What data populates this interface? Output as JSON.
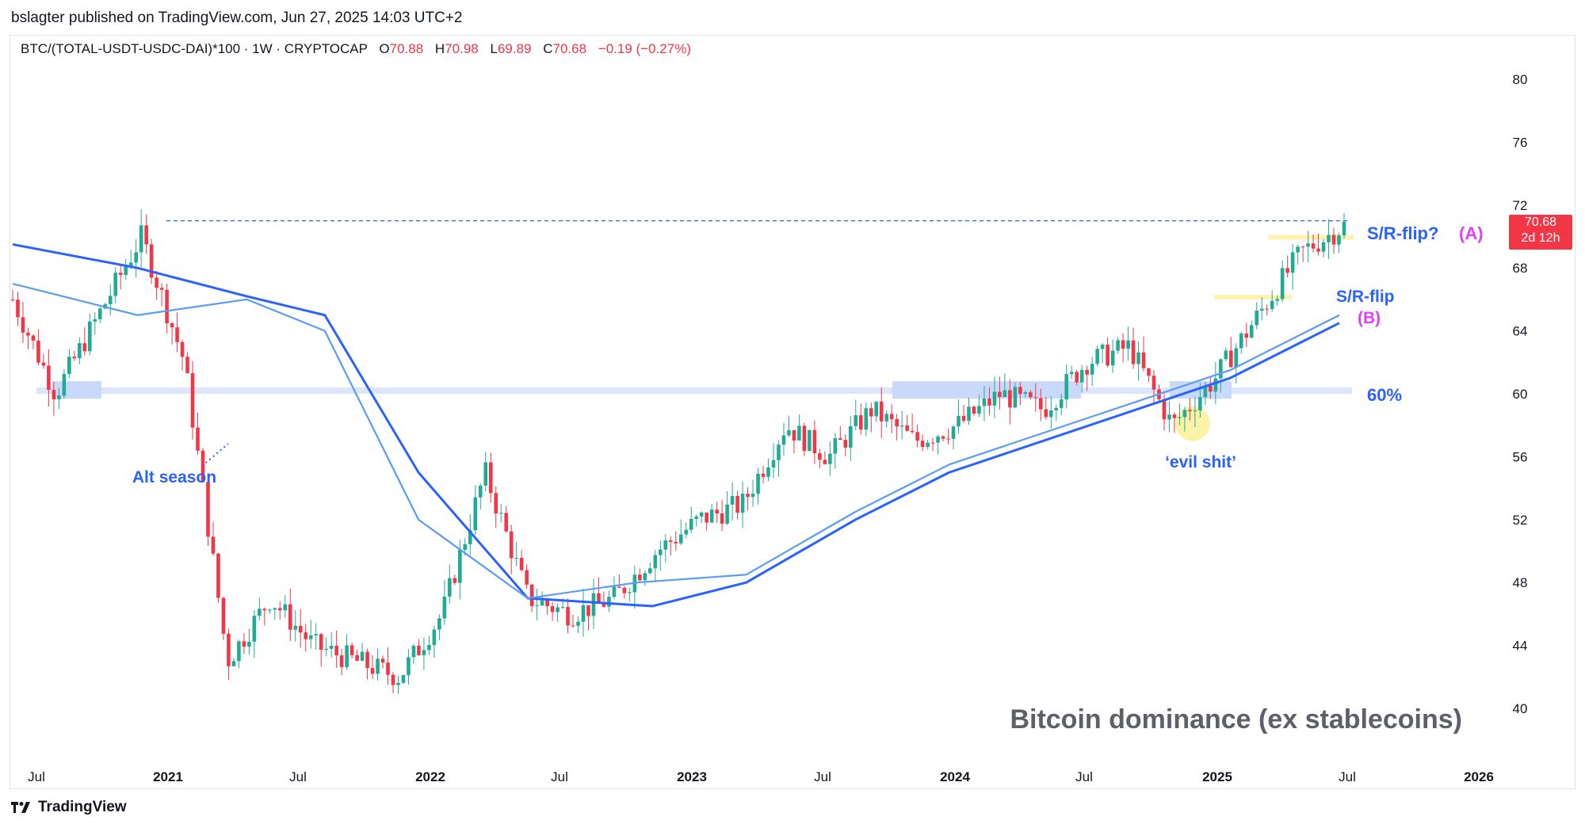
{
  "header": {
    "publisher_line": "bslagter published on TradingView.com, Jun 27, 2025 14:03 UTC+2"
  },
  "legend": {
    "symbol": "BTC/(TOTAL-USDT-USDC-DAI)*100 · 1W · CRYPTOCAP",
    "open_label": "O",
    "open": "70.88",
    "high_label": "H",
    "high": "70.98",
    "low_label": "L",
    "low": "69.89",
    "close_label": "C",
    "close": "70.68",
    "change": "−0.19 (−0.27%)"
  },
  "price_tag": {
    "price": "70.68",
    "countdown": "2d 12h"
  },
  "footer": {
    "brand": "TradingView"
  },
  "colors": {
    "up": "#22ab94",
    "down": "#f23645",
    "ma_dark": "#2962ff",
    "ma_light": "#5b9cf6",
    "annotation_blue": "#2962ff",
    "annotation_pink": "#e040fb"
  },
  "chart_data": {
    "type": "candlestick",
    "title": "Bitcoin dominance (ex stablecoins)",
    "timeframe": "1W",
    "x_ticks": [
      "Jul",
      "2021",
      "Jul",
      "2022",
      "Jul",
      "2023",
      "Jul",
      "2024",
      "Jul",
      "2025",
      "Jul",
      "2026"
    ],
    "y_ticks": [
      40,
      44,
      48,
      52,
      56,
      60,
      64,
      68,
      72,
      76,
      80
    ],
    "ylim": [
      38,
      82
    ],
    "last_price": 70.68,
    "horizontal_levels": [
      {
        "value": 71.0,
        "style": "dashed"
      },
      {
        "value": 60.2,
        "style": "band"
      }
    ],
    "series_close_approx": [
      {
        "date": "2020-07",
        "close": 66
      },
      {
        "date": "2020-09",
        "close": 60
      },
      {
        "date": "2020-11",
        "close": 65
      },
      {
        "date": "2021-01",
        "close": 70
      },
      {
        "date": "2021-03",
        "close": 62
      },
      {
        "date": "2021-05",
        "close": 43
      },
      {
        "date": "2021-07",
        "close": 47
      },
      {
        "date": "2021-09",
        "close": 44
      },
      {
        "date": "2021-11",
        "close": 43
      },
      {
        "date": "2022-01",
        "close": 42
      },
      {
        "date": "2022-03",
        "close": 46
      },
      {
        "date": "2022-05",
        "close": 55
      },
      {
        "date": "2022-07",
        "close": 47
      },
      {
        "date": "2022-09",
        "close": 46
      },
      {
        "date": "2022-11",
        "close": 47
      },
      {
        "date": "2023-01",
        "close": 50
      },
      {
        "date": "2023-03",
        "close": 52
      },
      {
        "date": "2023-05",
        "close": 53
      },
      {
        "date": "2023-07",
        "close": 58
      },
      {
        "date": "2023-09",
        "close": 56
      },
      {
        "date": "2023-11",
        "close": 59
      },
      {
        "date": "2024-01",
        "close": 57
      },
      {
        "date": "2024-03",
        "close": 58
      },
      {
        "date": "2024-05",
        "close": 60
      },
      {
        "date": "2024-07",
        "close": 59
      },
      {
        "date": "2024-09",
        "close": 62
      },
      {
        "date": "2024-11",
        "close": 63
      },
      {
        "date": "2024-12",
        "close": 58
      },
      {
        "date": "2025-01",
        "close": 61
      },
      {
        "date": "2025-03",
        "close": 65
      },
      {
        "date": "2025-05",
        "close": 69
      },
      {
        "date": "2025-06",
        "close": 70.68
      }
    ],
    "moving_averages": [
      {
        "color": "dark",
        "points": [
          [
            0,
            69.5
          ],
          [
            0.08,
            68
          ],
          [
            0.15,
            66.2
          ],
          [
            0.2,
            65
          ],
          [
            0.26,
            55
          ],
          [
            0.33,
            47
          ],
          [
            0.41,
            46.5
          ],
          [
            0.47,
            48
          ],
          [
            0.54,
            52
          ],
          [
            0.6,
            55
          ],
          [
            0.66,
            57
          ],
          [
            0.72,
            59
          ],
          [
            0.78,
            61
          ],
          [
            0.85,
            64.5
          ]
        ]
      },
      {
        "color": "light",
        "points": [
          [
            0,
            67
          ],
          [
            0.08,
            65
          ],
          [
            0.15,
            66
          ],
          [
            0.2,
            64
          ],
          [
            0.26,
            52
          ],
          [
            0.33,
            47
          ],
          [
            0.4,
            48
          ],
          [
            0.47,
            48.5
          ],
          [
            0.54,
            52.5
          ],
          [
            0.6,
            55.5
          ],
          [
            0.66,
            57.5
          ],
          [
            0.72,
            59.5
          ],
          [
            0.78,
            61.5
          ],
          [
            0.85,
            65
          ]
        ]
      }
    ],
    "annotations": [
      {
        "text": "Alt season",
        "color": "blue"
      },
      {
        "text": "‘evil shit’",
        "color": "blue"
      },
      {
        "text": "S/R-flip?",
        "color": "blue"
      },
      {
        "text": "(A)",
        "color": "pink"
      },
      {
        "text": "S/R-flip",
        "color": "blue"
      },
      {
        "text": "(B)",
        "color": "pink"
      },
      {
        "text": "60%",
        "color": "blue"
      }
    ]
  }
}
